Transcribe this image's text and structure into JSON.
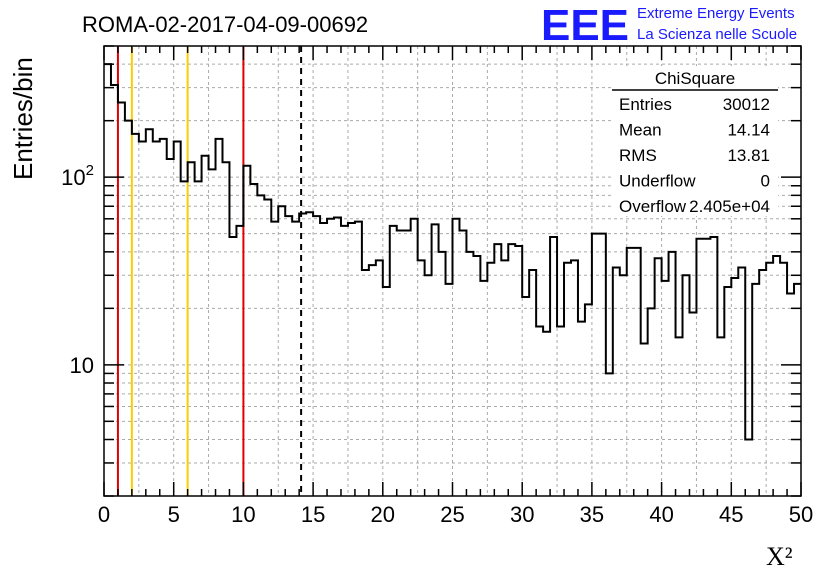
{
  "title": "ROMA-02-2017-04-09-00692",
  "logo": {
    "mark": "EEE",
    "line1": "Extreme Energy Events",
    "line2": "La Scienza nelle Scuole",
    "color": "#1a1aff"
  },
  "stats": {
    "header": "ChiSquare",
    "rows": [
      {
        "label": "Entries",
        "value": "30012"
      },
      {
        "label": "Mean",
        "value": "14.14"
      },
      {
        "label": "RMS",
        "value": "13.81"
      },
      {
        "label": "Underflow",
        "value": "0"
      },
      {
        "label": "Overflow",
        "value": "2.405e+04"
      }
    ]
  },
  "chart_data": {
    "type": "histogram",
    "title": "ROMA-02-2017-04-09-00692",
    "xlabel": "X²",
    "ylabel": "Entries/bin",
    "xlim": [
      0,
      50
    ],
    "ylim": [
      2,
      500
    ],
    "yscale": "log",
    "grid": true,
    "bin_width": 0.5,
    "values": [
      400,
      310,
      250,
      200,
      170,
      155,
      180,
      155,
      160,
      125,
      155,
      95,
      120,
      95,
      130,
      110,
      160,
      120,
      48,
      55,
      115,
      92,
      80,
      76,
      58,
      70,
      62,
      58,
      64,
      65,
      62,
      57,
      60,
      61,
      55,
      57,
      58,
      32,
      34,
      36,
      26,
      55,
      52,
      52,
      60,
      36,
      30,
      56,
      40,
      27,
      60,
      52,
      40,
      38,
      28,
      35,
      44,
      36,
      44,
      43,
      23,
      32,
      16,
      15,
      48,
      16,
      35,
      36,
      17,
      21,
      50,
      50,
      9,
      33,
      30,
      42,
      42,
      13,
      20,
      37,
      28,
      40,
      14,
      30,
      19,
      47,
      47,
      48,
      14,
      26,
      29,
      33,
      4,
      27,
      32,
      35,
      38,
      35,
      24,
      27
    ],
    "xticks": [
      0,
      5,
      10,
      15,
      20,
      25,
      30,
      35,
      40,
      45,
      50
    ],
    "ytick_labels": [
      {
        "value": 10,
        "label": "10"
      },
      {
        "value": 100,
        "label": "10",
        "exp": "2"
      }
    ],
    "vlines": [
      {
        "x": 1,
        "color": "#e00000",
        "style": "solid"
      },
      {
        "x": 2,
        "color": "#ffcc00",
        "style": "solid"
      },
      {
        "x": 6,
        "color": "#ffcc00",
        "style": "solid"
      },
      {
        "x": 10,
        "color": "#e00000",
        "style": "solid"
      },
      {
        "x": 14.14,
        "color": "#000000",
        "style": "dashed"
      }
    ],
    "line_color": "#000000",
    "grid_color": "#aaaaaa"
  }
}
